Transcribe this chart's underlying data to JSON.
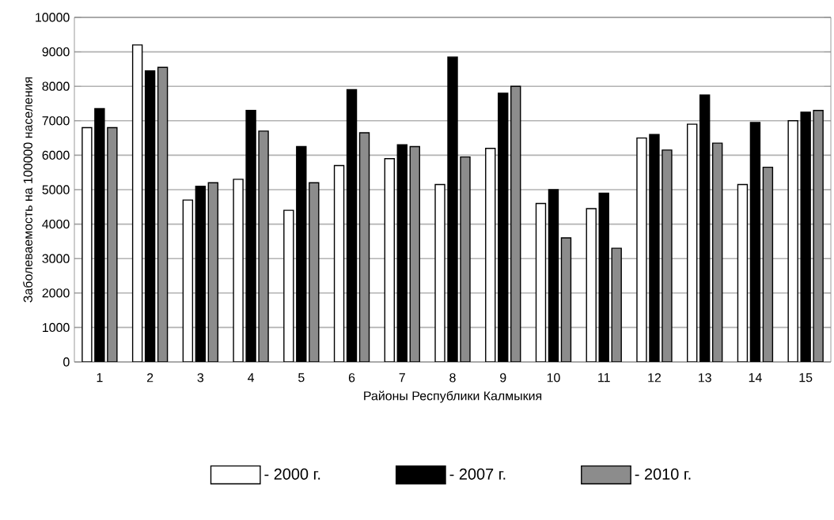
{
  "chart_data": {
    "type": "bar",
    "xlabel": "Районы Республики Калмыкия",
    "ylabel": "Заболеваемость на 100000 населения",
    "categories": [
      "1",
      "2",
      "3",
      "4",
      "5",
      "6",
      "7",
      "8",
      "9",
      "10",
      "11",
      "12",
      "13",
      "14",
      "15"
    ],
    "series": [
      {
        "name": "- 2000 г.",
        "color": "#ffffff",
        "values": [
          6800,
          9200,
          4700,
          5300,
          4400,
          5700,
          5900,
          5150,
          6200,
          4600,
          4450,
          6500,
          6900,
          5150,
          7000
        ]
      },
      {
        "name": "- 2007 г.",
        "color": "#000000",
        "values": [
          7350,
          8450,
          5100,
          7300,
          6250,
          7900,
          6300,
          8850,
          7800,
          5000,
          4900,
          6600,
          7750,
          6950,
          7250
        ]
      },
      {
        "name": "- 2010 г.",
        "color": "#8c8c8c",
        "values": [
          6800,
          8550,
          5200,
          6700,
          5200,
          6650,
          6250,
          5950,
          8000,
          3600,
          3300,
          6150,
          6350,
          5650,
          7300
        ]
      }
    ],
    "ylim": [
      0,
      10000
    ],
    "yticks": [
      0,
      1000,
      2000,
      3000,
      4000,
      5000,
      6000,
      7000,
      8000,
      9000,
      10000
    ],
    "grid": "y",
    "legend": "bottom"
  }
}
